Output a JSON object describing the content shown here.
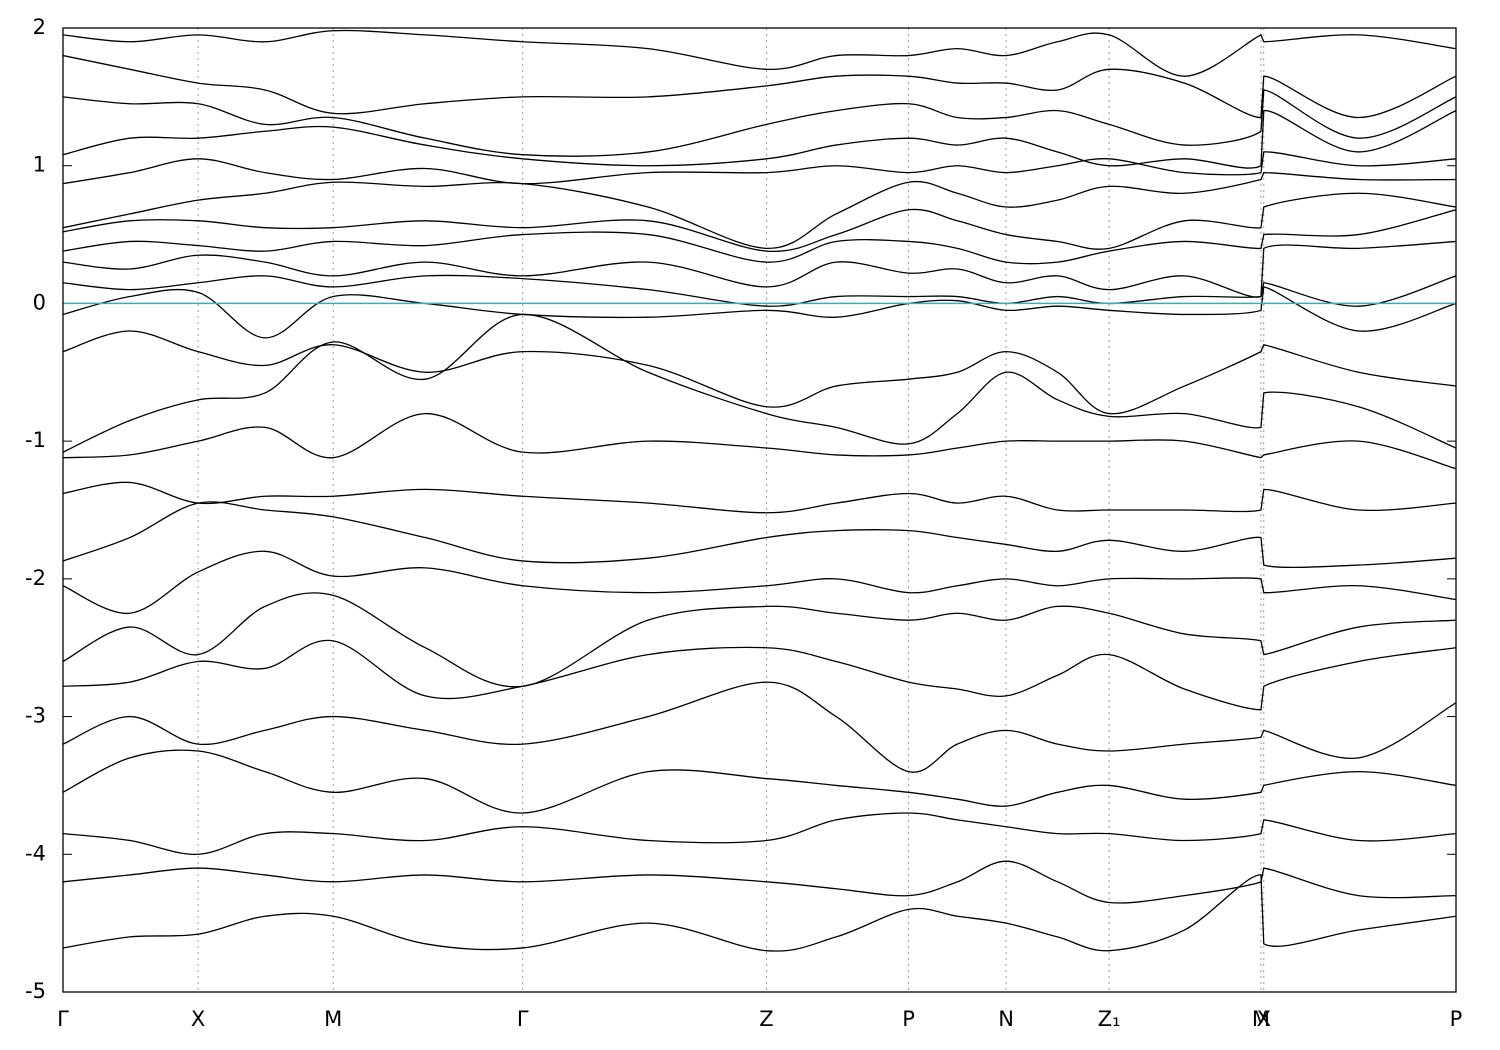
{
  "chart_data": {
    "type": "bands",
    "x": [
      0,
      0.48,
      0.97,
      1.45,
      1.94,
      2.6,
      3.3,
      4.2,
      5.05,
      5.55,
      6.07,
      6.42,
      6.77,
      7.14,
      7.51,
      8.05,
      8.6,
      8.62,
      9.3,
      10
    ],
    "xlim": [
      0,
      10
    ],
    "xticks": [
      {
        "value": 0,
        "label": "Γ"
      },
      {
        "value": 0.97,
        "label": "X"
      },
      {
        "value": 1.94,
        "label": "M"
      },
      {
        "value": 3.3,
        "label": "Γ"
      },
      {
        "value": 5.05,
        "label": "Z"
      },
      {
        "value": 6.07,
        "label": "P"
      },
      {
        "value": 6.77,
        "label": "N"
      },
      {
        "value": 7.51,
        "label": "Z₁"
      },
      {
        "value": 8.6,
        "label": "M"
      },
      {
        "value": 8.62,
        "label": "X"
      },
      {
        "value": 10,
        "label": "P"
      }
    ],
    "ylim": [
      -5,
      2
    ],
    "yticks": [
      -5,
      -4,
      -3,
      -2,
      -1,
      0,
      1,
      2
    ],
    "color": "#000000",
    "hline": 0,
    "hline_color": "#4aa3c4",
    "grid": true,
    "series": [
      {
        "values": [
          1.95,
          1.9,
          1.95,
          1.9,
          1.98,
          1.95,
          1.9,
          1.85,
          1.7,
          1.8,
          1.8,
          1.85,
          1.8,
          1.9,
          1.95,
          1.65,
          1.95,
          1.9,
          1.95,
          1.85
        ]
      },
      {
        "values": [
          1.8,
          1.7,
          1.6,
          1.55,
          1.38,
          1.45,
          1.5,
          1.5,
          1.58,
          1.65,
          1.65,
          1.6,
          1.6,
          1.55,
          1.7,
          1.6,
          1.35,
          1.65,
          1.35,
          1.65
        ]
      },
      {
        "values": [
          1.5,
          1.45,
          1.45,
          1.3,
          1.35,
          1.2,
          1.08,
          1.1,
          1.3,
          1.4,
          1.45,
          1.35,
          1.35,
          1.4,
          1.3,
          1.15,
          1.25,
          1.55,
          1.2,
          1.5
        ]
      },
      {
        "values": [
          1.08,
          1.2,
          1.2,
          1.25,
          1.28,
          1.15,
          1.05,
          1.0,
          1.05,
          1.15,
          1.2,
          1.15,
          1.2,
          1.1,
          1.0,
          1.05,
          1.0,
          1.4,
          1.1,
          1.4
        ]
      },
      {
        "values": [
          0.87,
          0.95,
          1.05,
          0.95,
          0.9,
          0.98,
          0.87,
          0.95,
          0.95,
          1.0,
          0.95,
          1.0,
          0.95,
          1.0,
          1.05,
          0.95,
          0.95,
          1.1,
          1.0,
          1.05
        ]
      },
      {
        "values": [
          0.55,
          0.65,
          0.75,
          0.8,
          0.88,
          0.85,
          0.87,
          0.7,
          0.4,
          0.65,
          0.88,
          0.8,
          0.7,
          0.75,
          0.85,
          0.8,
          0.9,
          0.95,
          0.9,
          0.9
        ]
      },
      {
        "values": [
          0.52,
          0.6,
          0.6,
          0.55,
          0.55,
          0.6,
          0.55,
          0.6,
          0.38,
          0.5,
          0.68,
          0.6,
          0.5,
          0.45,
          0.4,
          0.6,
          0.55,
          0.7,
          0.8,
          0.7
        ]
      },
      {
        "values": [
          0.38,
          0.45,
          0.42,
          0.38,
          0.45,
          0.42,
          0.5,
          0.5,
          0.3,
          0.45,
          0.45,
          0.4,
          0.3,
          0.3,
          0.38,
          0.45,
          0.4,
          0.5,
          0.5,
          0.68
        ]
      },
      {
        "values": [
          0.3,
          0.25,
          0.35,
          0.3,
          0.2,
          0.3,
          0.2,
          0.3,
          0.12,
          0.3,
          0.22,
          0.25,
          0.15,
          0.2,
          0.1,
          0.2,
          0.05,
          0.4,
          0.4,
          0.45
        ]
      },
      {
        "values": [
          0.15,
          0.1,
          0.15,
          0.2,
          0.12,
          0.2,
          0.18,
          0.1,
          -0.02,
          0.05,
          0.05,
          0.05,
          0,
          0.05,
          0,
          0.05,
          0.05,
          0.15,
          -0.02,
          0.2
        ]
      },
      {
        "values": [
          -0.08,
          0.05,
          0.08,
          -0.25,
          0.05,
          0,
          -0.08,
          -0.1,
          -0.05,
          -0.1,
          0,
          0.02,
          -0.05,
          -0.02,
          -0.05,
          -0.08,
          -0.05,
          0.12,
          -0.2,
          0
        ]
      },
      {
        "values": [
          -0.35,
          -0.2,
          -0.35,
          -0.45,
          -0.3,
          -0.5,
          -0.35,
          -0.45,
          -0.75,
          -0.6,
          -0.55,
          -0.5,
          -0.35,
          -0.5,
          -0.8,
          -0.6,
          -0.35,
          -0.3,
          -0.5,
          -0.6
        ]
      },
      {
        "values": [
          -1.08,
          -0.85,
          -0.7,
          -0.65,
          -0.28,
          -0.55,
          -0.08,
          -0.5,
          -0.8,
          -0.9,
          -1.02,
          -0.8,
          -0.5,
          -0.7,
          -0.82,
          -0.8,
          -0.9,
          -0.65,
          -0.75,
          -1.05
        ]
      },
      {
        "values": [
          -1.12,
          -1.1,
          -1,
          -0.9,
          -1.12,
          -0.8,
          -1.08,
          -1,
          -1.05,
          -1.1,
          -1.1,
          -1.05,
          -1,
          -1,
          -1,
          -1,
          -1.12,
          -1.1,
          -1,
          -1.2
        ]
      },
      {
        "values": [
          -1.38,
          -1.3,
          -1.45,
          -1.4,
          -1.4,
          -1.35,
          -1.4,
          -1.45,
          -1.52,
          -1.45,
          -1.38,
          -1.45,
          -1.4,
          -1.5,
          -1.5,
          -1.5,
          -1.5,
          -1.35,
          -1.5,
          -1.45
        ]
      },
      {
        "values": [
          -1.87,
          -1.7,
          -1.45,
          -1.5,
          -1.55,
          -1.7,
          -1.87,
          -1.85,
          -1.7,
          -1.65,
          -1.65,
          -1.7,
          -1.75,
          -1.8,
          -1.72,
          -1.8,
          -1.7,
          -1.9,
          -1.9,
          -1.85
        ]
      },
      {
        "values": [
          -2.05,
          -2.25,
          -1.95,
          -1.8,
          -1.98,
          -1.92,
          -2.05,
          -2.1,
          -2.05,
          -2,
          -2.1,
          -2.05,
          -2,
          -2.05,
          -2,
          -2,
          -2,
          -2.1,
          -2.05,
          -2.15
        ]
      },
      {
        "values": [
          -2.6,
          -2.35,
          -2.55,
          -2.2,
          -2.12,
          -2.5,
          -2.78,
          -2.3,
          -2.2,
          -2.25,
          -2.3,
          -2.25,
          -2.3,
          -2.2,
          -2.25,
          -2.4,
          -2.45,
          -2.55,
          -2.35,
          -2.3
        ]
      },
      {
        "values": [
          -2.78,
          -2.75,
          -2.6,
          -2.65,
          -2.45,
          -2.85,
          -2.78,
          -2.55,
          -2.5,
          -2.6,
          -2.75,
          -2.8,
          -2.85,
          -2.7,
          -2.55,
          -2.8,
          -2.95,
          -2.78,
          -2.6,
          -2.5
        ]
      },
      {
        "values": [
          -3.2,
          -3,
          -3.2,
          -3.1,
          -3,
          -3.1,
          -3.2,
          -3,
          -2.75,
          -3,
          -3.4,
          -3.2,
          -3.1,
          -3.2,
          -3.25,
          -3.2,
          -3.15,
          -3.1,
          -3.3,
          -2.9
        ]
      },
      {
        "values": [
          -3.55,
          -3.3,
          -3.25,
          -3.4,
          -3.55,
          -3.45,
          -3.7,
          -3.4,
          -3.45,
          -3.5,
          -3.55,
          -3.6,
          -3.65,
          -3.55,
          -3.5,
          -3.6,
          -3.55,
          -3.5,
          -3.4,
          -3.5
        ]
      },
      {
        "values": [
          -3.85,
          -3.9,
          -4,
          -3.85,
          -3.85,
          -3.9,
          -3.8,
          -3.9,
          -3.9,
          -3.75,
          -3.7,
          -3.75,
          -3.8,
          -3.85,
          -3.85,
          -3.9,
          -3.85,
          -3.75,
          -3.9,
          -3.85
        ]
      },
      {
        "values": [
          -4.2,
          -4.15,
          -4.1,
          -4.15,
          -4.2,
          -4.15,
          -4.2,
          -4.15,
          -4.2,
          -4.25,
          -4.3,
          -4.2,
          -4.05,
          -4.2,
          -4.35,
          -4.3,
          -4.2,
          -4.1,
          -4.3,
          -4.3
        ]
      },
      {
        "values": [
          -4.68,
          -4.6,
          -4.58,
          -4.45,
          -4.45,
          -4.65,
          -4.68,
          -4.5,
          -4.7,
          -4.6,
          -4.4,
          -4.45,
          -4.5,
          -4.6,
          -4.7,
          -4.55,
          -4.15,
          -4.65,
          -4.55,
          -4.45
        ]
      }
    ]
  }
}
